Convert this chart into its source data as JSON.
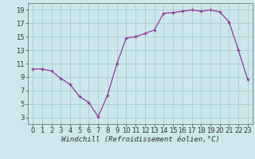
{
  "x": [
    0,
    1,
    2,
    3,
    4,
    5,
    6,
    7,
    8,
    9,
    10,
    11,
    12,
    13,
    14,
    15,
    16,
    17,
    18,
    19,
    20,
    21,
    22,
    23
  ],
  "y": [
    10.2,
    10.2,
    9.9,
    8.8,
    7.9,
    6.1,
    5.2,
    3.1,
    6.3,
    11.0,
    14.8,
    15.0,
    15.5,
    16.0,
    18.5,
    18.6,
    18.8,
    19.0,
    18.8,
    19.0,
    18.7,
    17.2,
    13.0,
    8.6
  ],
  "line_color": "#993399",
  "marker": "+",
  "bg_color": "#cce8ec",
  "grid_color": "#aacccc",
  "xlabel": "Windchill (Refroidissement éolien,°C)",
  "xlim": [
    -0.5,
    23.5
  ],
  "ylim": [
    2,
    20
  ],
  "yticks": [
    3,
    5,
    7,
    9,
    11,
    13,
    15,
    17,
    19
  ],
  "xticks": [
    0,
    1,
    2,
    3,
    4,
    5,
    6,
    7,
    8,
    9,
    10,
    11,
    12,
    13,
    14,
    15,
    16,
    17,
    18,
    19,
    20,
    21,
    22,
    23
  ],
  "xlabel_fontsize": 6.5,
  "tick_fontsize": 6,
  "marker_size": 3.5,
  "line_width": 0.9
}
